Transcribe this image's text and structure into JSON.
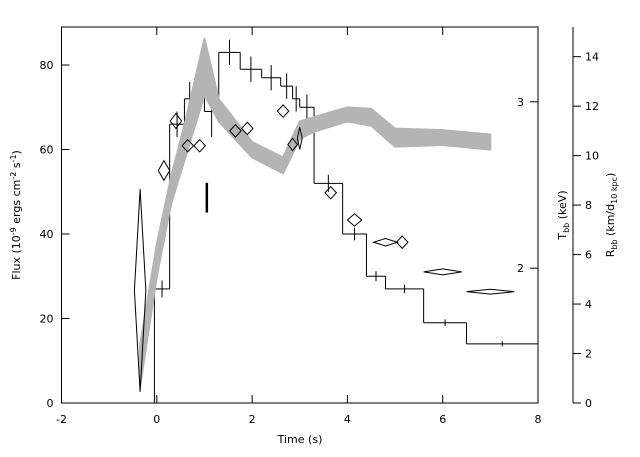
{
  "chart_data": {
    "type": "step",
    "xlabel": "Time (s)",
    "ylabel": [
      "Flux (10",
      "-9",
      " ergs cm",
      "-2",
      " s",
      "-1",
      ")"
    ],
    "y3label": [
      "T",
      "bb",
      " (keV)"
    ],
    "y2label": [
      "R",
      "bb",
      " (km/d",
      "10 kpc",
      ")"
    ],
    "xlim": [
      -2,
      8
    ],
    "xticks": [
      -2,
      0,
      2,
      4,
      6,
      8
    ],
    "ylim": [
      0,
      89
    ],
    "yticks": [
      0,
      20,
      40,
      60,
      80
    ],
    "y2lim": [
      0,
      15.2
    ],
    "y2ticks": [
      0,
      2,
      4,
      6,
      8,
      10,
      12,
      14
    ],
    "y3lim": [
      1.44,
      3.6
    ],
    "y3scale": "log",
    "y3ticks": [
      2,
      3
    ],
    "series": [
      {
        "type": "step",
        "color": "#000000",
        "bins": [
          -0.05,
          0.27,
          0.58,
          0.8,
          1.0,
          1.3,
          1.75,
          2.2,
          2.6,
          2.85,
          3.0,
          3.3,
          3.9,
          4.4,
          4.8,
          5.6,
          6.5,
          8.0
        ],
        "values": [
          27,
          66,
          72,
          77,
          69,
          83,
          79,
          77,
          75,
          72,
          70,
          52,
          40,
          30,
          27,
          19,
          14
        ],
        "errors": [
          2,
          3,
          4,
          4,
          6,
          3,
          3,
          3,
          3,
          3,
          3,
          2,
          1.5,
          1.2,
          1,
          0.8,
          0.6
        ]
      },
      {
        "type": "band",
        "axis": "y3",
        "color": "#b4b4b4",
        "x": [
          -0.35,
          0.0,
          0.3,
          0.6,
          1.0,
          1.3,
          2.0,
          2.65,
          3.0,
          3.3,
          4.0,
          4.5,
          5.0,
          6.0,
          7.0
        ],
        "lower": [
          1.5,
          1.96,
          2.34,
          2.62,
          3.05,
          2.86,
          2.62,
          2.52,
          2.74,
          2.79,
          2.86,
          2.83,
          2.69,
          2.7,
          2.67
        ],
        "upper": [
          1.66,
          2.12,
          2.5,
          2.86,
          3.5,
          3.02,
          2.72,
          2.62,
          2.86,
          2.89,
          2.96,
          2.95,
          2.81,
          2.8,
          2.77
        ]
      },
      {
        "type": "diamond",
        "axis": "y2",
        "color": "#000000",
        "x": [
          -0.35,
          0.15,
          0.4,
          0.65,
          0.9,
          1.65,
          1.9,
          2.65,
          2.85,
          3.0,
          3.65,
          4.15,
          4.8,
          5.15,
          6.0,
          7.0
        ],
        "values": [
          4.55,
          9.4,
          11.4,
          10.4,
          10.4,
          11.0,
          11.1,
          11.8,
          10.45,
          10.7,
          8.5,
          7.4,
          6.5,
          6.5,
          5.3,
          4.5
        ],
        "errors": [
          4.1,
          0.4,
          0.3,
          0.25,
          0.25,
          0.25,
          0.25,
          0.25,
          0.25,
          0.45,
          0.25,
          0.25,
          0.15,
          0.25,
          0.12,
          0.1
        ],
        "xerrors": [
          0.12,
          0.12,
          0.12,
          0.12,
          0.12,
          0.12,
          0.12,
          0.12,
          0.1,
          0.05,
          0.12,
          0.15,
          0.25,
          0.12,
          0.4,
          0.5
        ]
      },
      {
        "type": "errorbar",
        "axis": "y2",
        "color": "#000000",
        "x": [
          1.05
        ],
        "values": [
          8.3
        ],
        "errors": [
          0.6
        ]
      }
    ]
  }
}
